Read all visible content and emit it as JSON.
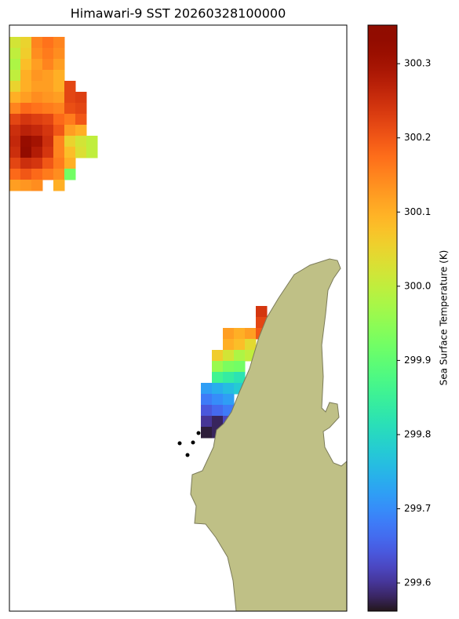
{
  "map": {
    "title": "Himawari-9 SST 20260328100000",
    "colorbar": {
      "label": "Sea Surface Temperature (K)",
      "colormap": "turbo",
      "clim": [
        299.562,
        300.352
      ],
      "ticks": [
        {
          "value": 299.6,
          "label": "299.6"
        },
        {
          "value": 299.7,
          "label": "299.7"
        },
        {
          "value": 299.8,
          "label": "299.8"
        },
        {
          "value": 299.9,
          "label": "299.9"
        },
        {
          "value": 300,
          "label": "300.0"
        },
        {
          "value": 300.1,
          "label": "300.1"
        },
        {
          "value": 300.2,
          "label": "300.2"
        },
        300.3
      ]
    },
    "grids": [
      {
        "rows": [
          [
            300.02,
            300.05,
            300.15,
            300.17,
            300.15,
            null,
            null,
            null
          ],
          [
            300.0,
            300.06,
            300.14,
            300.16,
            300.14,
            null,
            null,
            null
          ],
          [
            299.98,
            300.08,
            300.12,
            300.15,
            300.12,
            null,
            null,
            null
          ],
          [
            300.0,
            300.1,
            300.13,
            300.12,
            300.1,
            null,
            null,
            null
          ],
          [
            300.05,
            300.1,
            300.12,
            300.12,
            300.1,
            300.22,
            null,
            null
          ],
          [
            300.1,
            300.12,
            300.14,
            300.13,
            300.12,
            300.22,
            300.23,
            null
          ],
          [
            300.15,
            300.18,
            300.17,
            300.16,
            300.15,
            300.21,
            300.22,
            null
          ],
          [
            300.22,
            300.24,
            300.23,
            300.22,
            300.18,
            300.16,
            300.2,
            null
          ],
          [
            300.25,
            300.27,
            300.26,
            300.24,
            300.2,
            300.12,
            300.1,
            null
          ],
          [
            300.26,
            300.32,
            300.3,
            300.25,
            300.15,
            300.05,
            300.02,
            300.0
          ],
          [
            300.25,
            300.33,
            300.28,
            300.24,
            300.15,
            300.08,
            300.03,
            300.0
          ],
          [
            300.22,
            300.25,
            300.24,
            300.2,
            300.16,
            300.1,
            null,
            null
          ],
          [
            300.18,
            300.2,
            300.18,
            300.16,
            300.14,
            299.92,
            null,
            null
          ],
          [
            300.12,
            300.13,
            300.14,
            null,
            300.1,
            null,
            null,
            null
          ]
        ]
      },
      {
        "rows": [
          [
            null,
            null,
            null,
            null,
            null,
            300.24
          ],
          [
            null,
            null,
            null,
            null,
            null,
            300.22
          ],
          [
            null,
            null,
            300.12,
            300.1,
            300.12,
            300.2
          ],
          [
            null,
            null,
            300.1,
            300.08,
            300.04,
            null
          ],
          [
            null,
            300.06,
            300.02,
            299.98,
            300.0,
            null
          ],
          [
            null,
            299.96,
            299.93,
            299.92,
            null,
            null
          ],
          [
            null,
            299.86,
            299.84,
            299.82,
            null,
            null
          ],
          [
            299.72,
            299.74,
            299.76,
            299.78,
            null,
            null
          ],
          [
            299.68,
            299.7,
            299.72,
            null,
            null,
            null
          ],
          [
            299.64,
            299.66,
            299.68,
            null,
            null,
            null
          ],
          [
            299.6,
            299.58,
            299.62,
            null,
            null,
            null
          ],
          [
            299.57,
            299.58,
            null,
            null,
            null,
            null
          ]
        ]
      }
    ]
  }
}
